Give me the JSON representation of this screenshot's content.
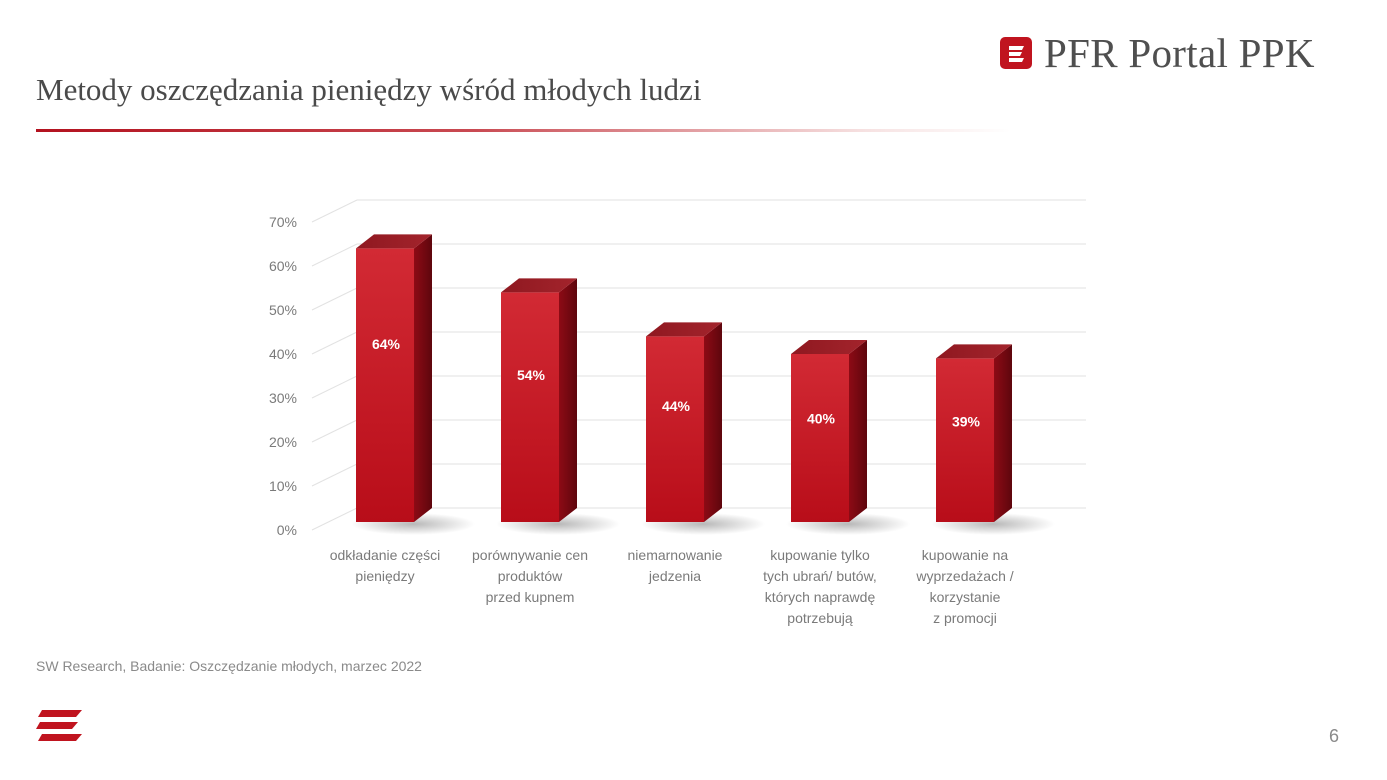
{
  "slide": {
    "title": "Metody oszczędzania pieniędzy wśród młodych ludzi",
    "source": "SW Research, Badanie: Oszczędzanie młodych, marzec 2022",
    "page_number": "6"
  },
  "brand": {
    "name": "PFR Portal PPK",
    "icon": "pfr-logo-icon",
    "color": "#c0141f"
  },
  "chart_data": {
    "type": "bar",
    "style": "3d",
    "title": "",
    "xlabel": "",
    "ylabel": "",
    "ylim": [
      0,
      70
    ],
    "yticks": [
      "0%",
      "10%",
      "20%",
      "30%",
      "40%",
      "50%",
      "60%",
      "70%"
    ],
    "grid": true,
    "legend": "none",
    "bar_color": "#c0141f",
    "categories": [
      [
        "odkładanie części",
        "pieniędzy"
      ],
      [
        "porównywanie cen",
        "produktów",
        "przed kupnem"
      ],
      [
        "niemarnowanie",
        "jedzenia"
      ],
      [
        "kupowanie tylko",
        "tych ubrań/ butów,",
        "których naprawdę",
        "potrzebują"
      ],
      [
        "kupowanie na",
        "wyprzedażach /",
        "korzystanie",
        "z promocji"
      ]
    ],
    "values": [
      64,
      54,
      44,
      40,
      39
    ],
    "data_labels": [
      "64%",
      "54%",
      "44%",
      "40%",
      "39%"
    ]
  }
}
